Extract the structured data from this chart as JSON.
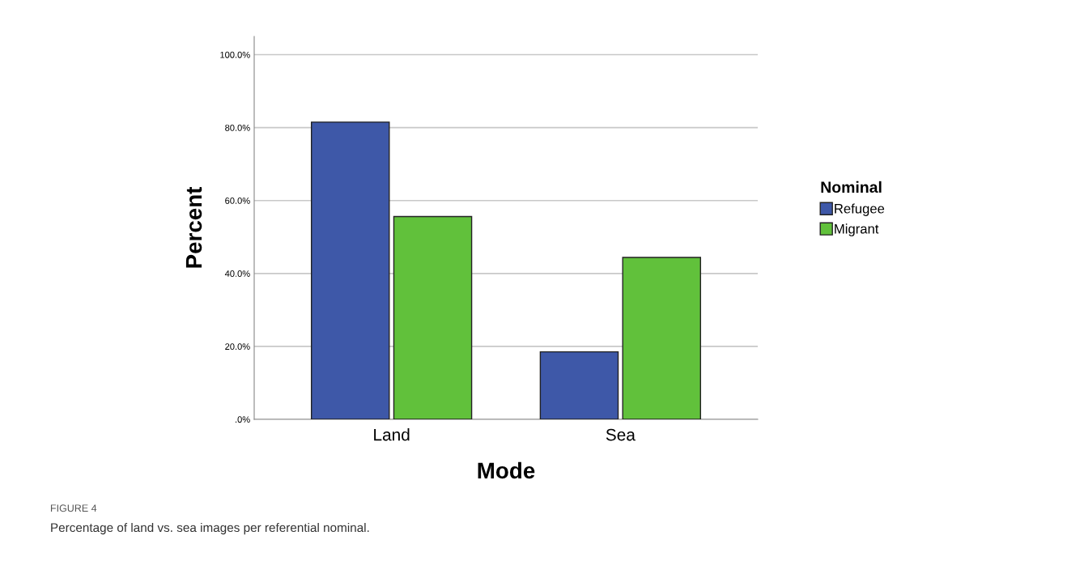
{
  "chart_data": {
    "type": "bar",
    "xlabel": "Mode",
    "ylabel": "Percent",
    "legend_title": "Nominal",
    "categories": [
      "Land",
      "Sea"
    ],
    "series": [
      {
        "name": "Refugee",
        "color": "#3e58a8",
        "values": [
          81.5,
          18.5
        ]
      },
      {
        "name": "Migrant",
        "color": "#61c13b",
        "values": [
          55.6,
          44.4
        ]
      }
    ],
    "ylim": [
      0,
      105
    ],
    "yticks": [
      {
        "value": 0,
        "label": ".0%"
      },
      {
        "value": 20,
        "label": "20.0%"
      },
      {
        "value": 40,
        "label": "40.0%"
      },
      {
        "value": 60,
        "label": "60.0%"
      },
      {
        "value": 80,
        "label": "80.0%"
      },
      {
        "value": 100,
        "label": "100.0%"
      }
    ],
    "grid": "y",
    "legend": "right",
    "annotations": [
      "FIGURE 4",
      "Percentage of land vs. sea images per referential nominal."
    ]
  }
}
